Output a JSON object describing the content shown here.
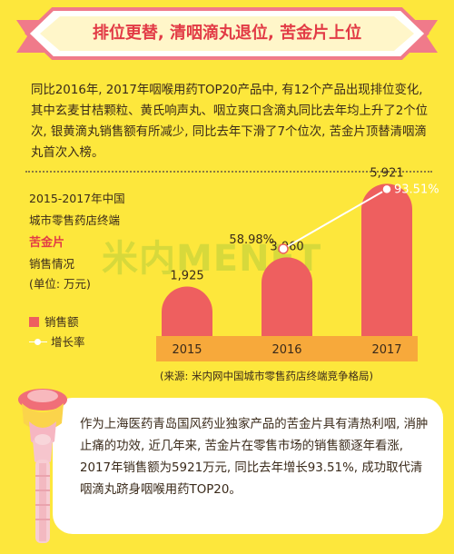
{
  "banner": {
    "title": "排位更替, 清咽滴丸退位, 苦金片上位"
  },
  "intro": {
    "text": "同比2016年, 2017年咽喉用药TOP20产品中, 有12个产品出现排位变化, 其中玄麦甘桔颗粒、黄氏响声丸、咽立爽口含滴丸同比去年均上升了2个位次, 银黄滴丸销售额有所减少, 同比去年下滑了7个位次, 苦金片顶替清咽滴丸首次入榜。"
  },
  "caption": {
    "line1": "2015-2017年中国",
    "line2": "城市零售药店终端",
    "product": "苦金片",
    "line3": "销售情况",
    "unit": "(单位: 万元)"
  },
  "legend": {
    "sales": "销售额",
    "growth": "增长率"
  },
  "watermark": "米内MENET",
  "source": "(来源: 米内网中国城市零售药店终端竞争格局)",
  "summary": {
    "text": "作为上海医药青岛国风药业独家产品的苦金片具有清热利咽, 消肿止痛的功效, 近几年来, 苦金片在零售市场的销售额逐年看涨, 2017年销售额为5921万元, 同比去年增长93.51%, 成功取代清咽滴丸跻身咽喉用药TOP20。"
  },
  "colors": {
    "background": "#fde73c",
    "bar": "#ee5f5f",
    "accent": "#e23b46",
    "year_band": "#f7a93b",
    "growth_line": "#ffffff"
  },
  "chart_data": {
    "type": "bar",
    "categories": [
      "2015",
      "2016",
      "2017"
    ],
    "series": [
      {
        "name": "销售额",
        "values": [
          1925,
          3060,
          5921
        ],
        "labels": [
          "1,925",
          "3,060",
          "5,921"
        ]
      },
      {
        "name": "增长率",
        "type": "line",
        "values": [
          null,
          58.98,
          93.51
        ],
        "labels": [
          "",
          "58.98%",
          "93.51%"
        ]
      }
    ],
    "ylim": [
      0,
      6500
    ],
    "legend_position": "left"
  }
}
